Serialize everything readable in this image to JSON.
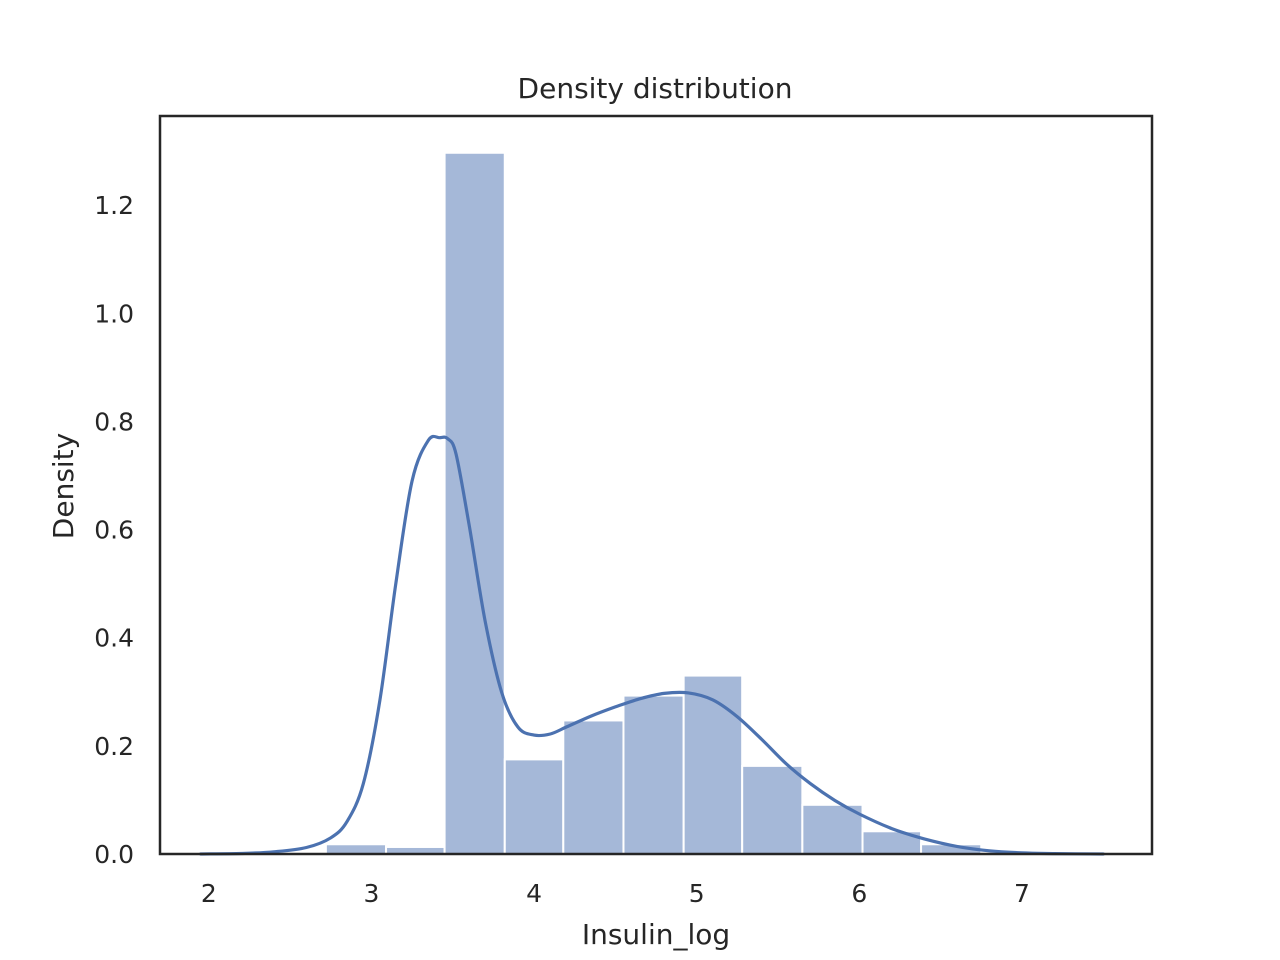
{
  "chart_data": {
    "type": "histogram",
    "title": "Density distribution",
    "xlabel": "Insulin_log",
    "ylabel": "Density",
    "xlim": [
      1.7,
      7.8
    ],
    "ylim": [
      0,
      1.365
    ],
    "grid": false,
    "xticks": [
      2,
      3,
      4,
      5,
      6,
      7
    ],
    "yticks": [
      0.0,
      0.2,
      0.4,
      0.6,
      0.8,
      1.0,
      1.2
    ],
    "ytick_labels": [
      "0.0",
      "0.2",
      "0.4",
      "0.6",
      "0.8",
      "1.0",
      "1.2"
    ],
    "colors": {
      "bar": "#a5b8d8",
      "bar_edge": "#ffffff",
      "kde": "#4c72b0",
      "axes": "#262626"
    },
    "bins": [
      {
        "x0": 2.72,
        "x1": 3.09,
        "value": 0.018
      },
      {
        "x0": 3.09,
        "x1": 3.45,
        "value": 0.013
      },
      {
        "x0": 3.45,
        "x1": 3.82,
        "value": 1.297
      },
      {
        "x0": 3.82,
        "x1": 4.18,
        "value": 0.175
      },
      {
        "x0": 4.18,
        "x1": 4.55,
        "value": 0.247
      },
      {
        "x0": 4.55,
        "x1": 4.92,
        "value": 0.293
      },
      {
        "x0": 4.92,
        "x1": 5.28,
        "value": 0.33
      },
      {
        "x0": 5.28,
        "x1": 5.65,
        "value": 0.163
      },
      {
        "x0": 5.65,
        "x1": 6.02,
        "value": 0.091
      },
      {
        "x0": 6.02,
        "x1": 6.38,
        "value": 0.042
      },
      {
        "x0": 6.38,
        "x1": 6.75,
        "value": 0.018
      }
    ],
    "kde": {
      "x": [
        1.95,
        2.2,
        2.4,
        2.6,
        2.75,
        2.85,
        2.95,
        3.05,
        3.15,
        3.25,
        3.35,
        3.42,
        3.47,
        3.52,
        3.6,
        3.7,
        3.8,
        3.9,
        4.0,
        4.1,
        4.2,
        4.35,
        4.5,
        4.65,
        4.8,
        4.95,
        5.1,
        5.25,
        5.4,
        5.55,
        5.7,
        5.85,
        6.0,
        6.2,
        6.4,
        6.6,
        6.8,
        7.0,
        7.2,
        7.5
      ],
      "y": [
        0.0,
        0.001,
        0.004,
        0.012,
        0.03,
        0.06,
        0.13,
        0.28,
        0.5,
        0.69,
        0.765,
        0.77,
        0.768,
        0.74,
        0.61,
        0.43,
        0.3,
        0.235,
        0.22,
        0.222,
        0.235,
        0.255,
        0.272,
        0.287,
        0.297,
        0.298,
        0.285,
        0.254,
        0.212,
        0.167,
        0.13,
        0.099,
        0.074,
        0.047,
        0.028,
        0.014,
        0.006,
        0.002,
        0.0007,
        0.0
      ]
    }
  }
}
